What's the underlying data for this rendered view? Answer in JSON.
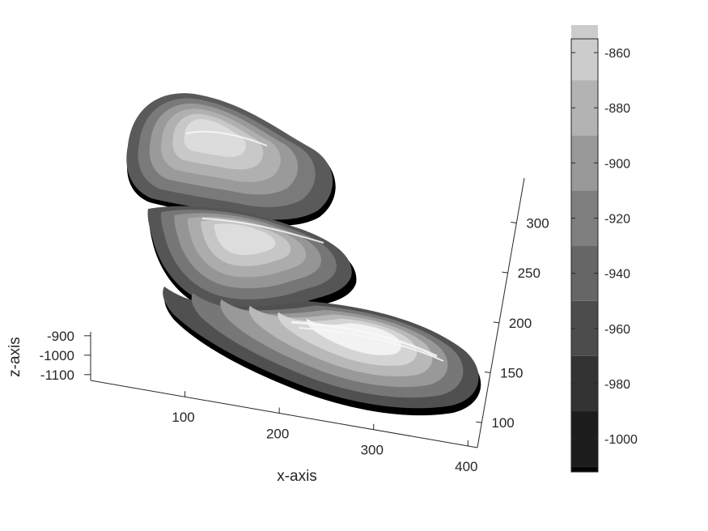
{
  "chart_data": {
    "type": "3d-surface-filled-contour",
    "colormap": "gray",
    "x_axis": {
      "label": "x-axis",
      "ticks": [
        100,
        200,
        300,
        400
      ],
      "range": [
        0,
        410
      ]
    },
    "y_axis": {
      "label": "",
      "ticks": [
        100,
        150,
        200,
        250,
        300
      ],
      "range": [
        75,
        345
      ]
    },
    "z_axis": {
      "label": "z-axis",
      "ticks": [
        -900,
        -1000,
        -1100
      ],
      "range": [
        -1130,
        -880
      ]
    },
    "colorbar": {
      "ticks": [
        -860,
        -880,
        -900,
        -920,
        -940,
        -960,
        -980,
        -1000
      ],
      "levels": [
        -1010,
        -990,
        -970,
        -950,
        -930,
        -910,
        -890,
        -870,
        -850
      ],
      "range": [
        -1012,
        -855
      ],
      "level_colors": [
        "#050505",
        "#1c1c1c",
        "#333333",
        "#4c4c4c",
        "#666666",
        "#7f7f7f",
        "#999999",
        "#b3b3b3",
        "#cccccc",
        "#e6e6e6",
        "#ffffff"
      ]
    },
    "grid": false,
    "surface_lobes": [
      {
        "name": "upper",
        "level_colors": [
          "#000000",
          "#5a5a5a",
          "#7a7a7a",
          "#9a9a9a",
          "#b0b0b0",
          "#c8c8c8",
          "#dcdcdc"
        ]
      },
      {
        "name": "middle",
        "level_colors": [
          "#000000",
          "#555555",
          "#767676",
          "#959595",
          "#acacac",
          "#c6c6c6",
          "#dddddd"
        ]
      },
      {
        "name": "lower",
        "level_colors": [
          "#000000",
          "#505050",
          "#777777",
          "#999999",
          "#b8b8b8",
          "#d4d4d4",
          "#f2f2f2"
        ]
      }
    ]
  }
}
